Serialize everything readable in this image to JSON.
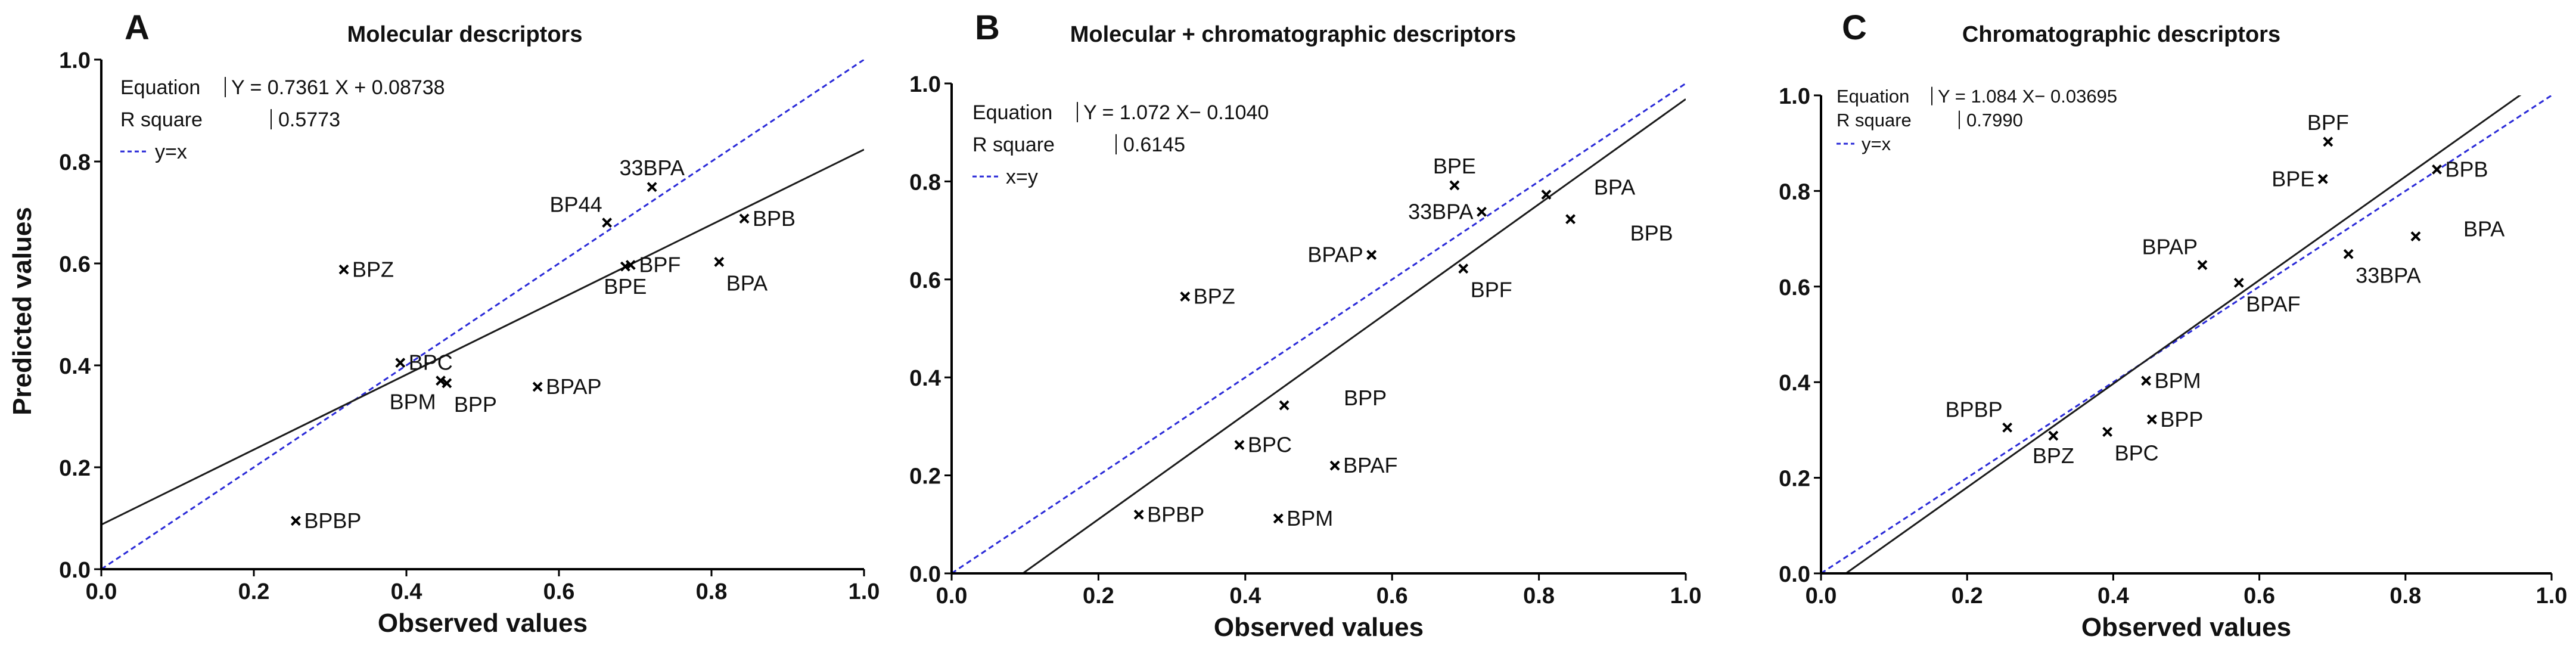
{
  "y_axis_label": "Predicted values",
  "colors": {
    "fit_line": "#1a1a1a",
    "identity_line": "#2a2ad8",
    "axis": "#000000",
    "marker": "#000000",
    "text": "#111111"
  },
  "chart_data": [
    {
      "type": "scatter",
      "panel_letter": "A",
      "title": "Molecular descriptors",
      "xlabel": "Observed values",
      "ylabel": "Predicted values",
      "xlim": [
        0,
        1.0
      ],
      "ylim": [
        0,
        1.0
      ],
      "xticks": [
        "0.0",
        "0.2",
        "0.4",
        "0.6",
        "0.8",
        "1.0"
      ],
      "yticks": [
        "0.0",
        "0.2",
        "0.4",
        "0.6",
        "0.8",
        "1.0"
      ],
      "grid": false,
      "fit": {
        "slope": 0.7361,
        "intercept": 0.08738
      },
      "identity_line": true,
      "legend": {
        "equation_label": "Equation",
        "equation": "Y = 0.7361  X + 0.08738",
        "r2_label": "R square",
        "r2": "0.5773",
        "identity_label": "y=x"
      },
      "points": [
        {
          "label": "BPBP",
          "x": 0.255,
          "y": 0.095
        },
        {
          "label": "BPZ",
          "x": 0.318,
          "y": 0.588
        },
        {
          "label": "BPC",
          "x": 0.392,
          "y": 0.405
        },
        {
          "label": "BPM",
          "x": 0.445,
          "y": 0.37
        },
        {
          "label": "BPP",
          "x": 0.453,
          "y": 0.365
        },
        {
          "label": "BPAP",
          "x": 0.572,
          "y": 0.358
        },
        {
          "label": "BP44",
          "x": 0.663,
          "y": 0.68
        },
        {
          "label": "33BPA",
          "x": 0.722,
          "y": 0.75
        },
        {
          "label": "BPF",
          "x": 0.694,
          "y": 0.597
        },
        {
          "label": "BPE",
          "x": 0.687,
          "y": 0.594
        },
        {
          "label": "BPA",
          "x": 0.81,
          "y": 0.603
        },
        {
          "label": "BPB",
          "x": 0.843,
          "y": 0.688
        }
      ]
    },
    {
      "type": "scatter",
      "panel_letter": "B",
      "title": "Molecular + chromatographic descriptors",
      "xlabel": "Observed values",
      "ylabel": "",
      "xlim": [
        0,
        1.0
      ],
      "ylim": [
        0,
        1.0
      ],
      "xticks": [
        "0.0",
        "0.2",
        "0.4",
        "0.6",
        "0.8",
        "1.0"
      ],
      "yticks": [
        "0.0",
        "0.2",
        "0.4",
        "0.6",
        "0.8",
        "1.0"
      ],
      "grid": false,
      "fit": {
        "slope": 1.072,
        "intercept": -0.104
      },
      "identity_line": true,
      "legend": {
        "equation_label": "Equation",
        "equation": "Y = 1.072  X− 0.1040",
        "r2_label": "R square",
        "r2": "0.6145",
        "identity_label": "x=y"
      },
      "points": [
        {
          "label": "BPBP",
          "x": 0.255,
          "y": 0.12
        },
        {
          "label": "BPZ",
          "x": 0.318,
          "y": 0.565
        },
        {
          "label": "BPC",
          "x": 0.392,
          "y": 0.262
        },
        {
          "label": "BPM",
          "x": 0.445,
          "y": 0.112
        },
        {
          "label": "BPP",
          "x": 0.453,
          "y": 0.343
        },
        {
          "label": "BPAF",
          "x": 0.522,
          "y": 0.22
        },
        {
          "label": "BPAP",
          "x": 0.572,
          "y": 0.65
        },
        {
          "label": "BPE",
          "x": 0.685,
          "y": 0.792
        },
        {
          "label": "33BPA",
          "x": 0.722,
          "y": 0.738
        },
        {
          "label": "BPF",
          "x": 0.697,
          "y": 0.622
        },
        {
          "label": "BPA",
          "x": 0.81,
          "y": 0.773
        },
        {
          "label": "BPB",
          "x": 0.843,
          "y": 0.723
        }
      ]
    },
    {
      "type": "scatter",
      "panel_letter": "C",
      "title": "Chromatographic descriptors",
      "xlabel": "Observed values",
      "ylabel": "",
      "xlim": [
        0,
        1.0
      ],
      "ylim": [
        0,
        1.0
      ],
      "xticks": [
        "0.0",
        "0.2",
        "0.4",
        "0.6",
        "0.8",
        "1.0"
      ],
      "yticks": [
        "0.0",
        "0.2",
        "0.4",
        "0.6",
        "0.8",
        "1.0"
      ],
      "grid": false,
      "fit": {
        "slope": 1.084,
        "intercept": -0.03695
      },
      "identity_line": true,
      "legend": {
        "equation_label": "Equation",
        "equation": "Y = 1.084  X− 0.03695",
        "r2_label": "R square",
        "r2": "0.7990",
        "identity_label": "y=x"
      },
      "points": [
        {
          "label": "BPBP",
          "x": 0.255,
          "y": 0.305
        },
        {
          "label": "BPZ",
          "x": 0.318,
          "y": 0.288
        },
        {
          "label": "BPC",
          "x": 0.392,
          "y": 0.296
        },
        {
          "label": "BPM",
          "x": 0.445,
          "y": 0.403
        },
        {
          "label": "BPP",
          "x": 0.453,
          "y": 0.322
        },
        {
          "label": "BPAP",
          "x": 0.522,
          "y": 0.645
        },
        {
          "label": "BPAF",
          "x": 0.572,
          "y": 0.608
        },
        {
          "label": "BPE",
          "x": 0.687,
          "y": 0.825
        },
        {
          "label": "BPF",
          "x": 0.694,
          "y": 0.903
        },
        {
          "label": "33BPA",
          "x": 0.722,
          "y": 0.668
        },
        {
          "label": "BPA",
          "x": 0.814,
          "y": 0.705
        },
        {
          "label": "BPB",
          "x": 0.843,
          "y": 0.845
        }
      ]
    }
  ]
}
